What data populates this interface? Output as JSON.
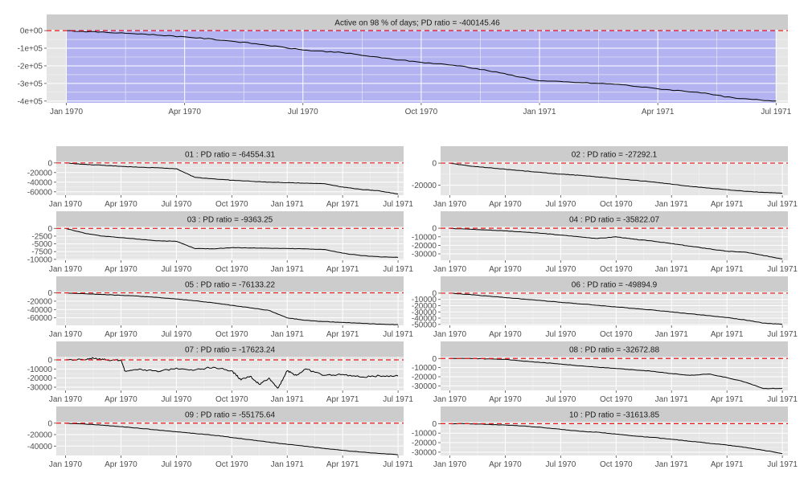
{
  "theme": {
    "panel_bg": "#e5e5e5",
    "strip_bg": "#cccccc",
    "grid_major": "#ffffff",
    "grid_minor": "#f2f2f2",
    "line": "#000000",
    "zero_line": "#e41a1c",
    "active_fill": "#aaaaf5",
    "axis_text": "#4d4d4d"
  },
  "x_axis": {
    "range": [
      -0.5,
      18.3
    ],
    "ticks": [
      {
        "value": 0,
        "label": "Jan 1970"
      },
      {
        "value": 3,
        "label": "Apr 1970"
      },
      {
        "value": 6,
        "label": "Jul 1970"
      },
      {
        "value": 9,
        "label": "Oct 1970"
      },
      {
        "value": 12,
        "label": "Jan 1971"
      },
      {
        "value": 15,
        "label": "Apr 1971"
      },
      {
        "value": 18,
        "label": "Jul 1971"
      }
    ]
  },
  "chart_data": [
    {
      "id": "aggregate",
      "type": "line",
      "title": "Active on 98 % of days; PD ratio =  -400145.46",
      "x_unit": "months since Jan 1970",
      "active_period": [
        0,
        18
      ],
      "ylim": [
        -410000,
        5000
      ],
      "y_ticks": [
        {
          "value": 0,
          "label": "0e+00"
        },
        {
          "value": -100000,
          "label": "-1e+05"
        },
        {
          "value": -200000,
          "label": "-2e+05"
        },
        {
          "value": -300000,
          "label": "-3e+05"
        },
        {
          "value": -400000,
          "label": "-4e+05"
        }
      ],
      "x": [
        0,
        1,
        2,
        3,
        4,
        5,
        6,
        7,
        8,
        9,
        10,
        11,
        12,
        13,
        14,
        15,
        16,
        17,
        18
      ],
      "values": [
        0,
        -10000,
        -20000,
        -35000,
        -55000,
        -80000,
        -110000,
        -125000,
        -155000,
        -180000,
        -200000,
        -240000,
        -285000,
        -295000,
        -305000,
        -330000,
        -350000,
        -385000,
        -400000
      ]
    },
    {
      "id": "01",
      "type": "line",
      "title": "01 : PD ratio =  -64554.31",
      "ylim": [
        -67000,
        3000
      ],
      "y_ticks": [
        {
          "value": 0,
          "label": "0"
        },
        {
          "value": -20000,
          "label": "-20000"
        },
        {
          "value": -40000,
          "label": "-40000"
        },
        {
          "value": -60000,
          "label": "-60000"
        }
      ],
      "x": [
        0,
        1,
        2,
        3,
        4,
        5,
        6,
        7,
        8,
        9,
        10,
        11,
        12,
        13,
        14,
        15,
        16,
        17,
        18
      ],
      "values": [
        0,
        -3000,
        -5000,
        -7000,
        -9000,
        -10000,
        -12000,
        -30000,
        -33000,
        -36000,
        -38000,
        -40000,
        -41000,
        -42000,
        -43000,
        -50000,
        -55000,
        -58000,
        -64554
      ]
    },
    {
      "id": "02",
      "type": "line",
      "title": "02 : PD ratio =  -27292.1",
      "ylim": [
        -29000,
        1500
      ],
      "y_ticks": [
        {
          "value": 0,
          "label": "0"
        },
        {
          "value": -20000,
          "label": "-20000"
        }
      ],
      "x": [
        0,
        1,
        2,
        3,
        4,
        5,
        6,
        7,
        8,
        9,
        10,
        11,
        12,
        13,
        14,
        15,
        16,
        17,
        18
      ],
      "values": [
        0,
        -2500,
        -4000,
        -5500,
        -7000,
        -8500,
        -10000,
        -11000,
        -12500,
        -14000,
        -15500,
        -17000,
        -19000,
        -21000,
        -22500,
        -24000,
        -25500,
        -26500,
        -27292
      ]
    },
    {
      "id": "03",
      "type": "line",
      "title": "03 : PD ratio =  -9363.25",
      "ylim": [
        -10300,
        600
      ],
      "y_ticks": [
        {
          "value": 0,
          "label": "0"
        },
        {
          "value": -2500,
          "label": "-2500"
        },
        {
          "value": -5000,
          "label": "-5000"
        },
        {
          "value": -7500,
          "label": "-7500"
        },
        {
          "value": -10000,
          "label": "-10000"
        }
      ],
      "x": [
        0,
        1,
        2,
        3,
        4,
        5,
        6,
        7,
        8,
        9,
        10,
        11,
        12,
        13,
        14,
        15,
        16,
        17,
        18
      ],
      "values": [
        0,
        -1500,
        -2500,
        -3000,
        -3500,
        -4000,
        -4200,
        -6500,
        -6600,
        -6200,
        -6300,
        -6400,
        -6500,
        -6600,
        -6800,
        -8000,
        -8800,
        -9200,
        -9363
      ]
    },
    {
      "id": "04",
      "type": "line",
      "title": "04 : PD ratio =  -35822.07",
      "ylim": [
        -37500,
        2000
      ],
      "y_ticks": [
        {
          "value": 0,
          "label": "0"
        },
        {
          "value": -10000,
          "label": "-10000"
        },
        {
          "value": -20000,
          "label": "-20000"
        },
        {
          "value": -30000,
          "label": "-30000"
        }
      ],
      "x": [
        0,
        1,
        2,
        3,
        4,
        5,
        6,
        7,
        8,
        9,
        10,
        11,
        12,
        13,
        14,
        15,
        16,
        17,
        18
      ],
      "values": [
        0,
        -1000,
        -2000,
        -3000,
        -4500,
        -6000,
        -8000,
        -10000,
        -12000,
        -10000,
        -13000,
        -15000,
        -18000,
        -21000,
        -24000,
        -27000,
        -28000,
        -32000,
        -35822
      ]
    },
    {
      "id": "05",
      "type": "line",
      "title": "05 : PD ratio =  -76133.22",
      "ylim": [
        -78000,
        3000
      ],
      "y_ticks": [
        {
          "value": 0,
          "label": "0"
        },
        {
          "value": -20000,
          "label": "-20000"
        },
        {
          "value": -40000,
          "label": "-40000"
        },
        {
          "value": -60000,
          "label": "-60000"
        }
      ],
      "x": [
        0,
        1,
        2,
        3,
        4,
        5,
        6,
        7,
        8,
        9,
        10,
        11,
        12,
        13,
        14,
        15,
        16,
        17,
        18
      ],
      "values": [
        0,
        -2000,
        -4000,
        -6000,
        -8000,
        -11000,
        -15000,
        -19000,
        -24000,
        -30000,
        -36000,
        -42000,
        -60000,
        -66000,
        -69000,
        -71000,
        -73000,
        -75000,
        -76133
      ]
    },
    {
      "id": "06",
      "type": "line",
      "title": "06 : PD ratio =  -49894.9",
      "ylim": [
        -51500,
        2500
      ],
      "y_ticks": [
        {
          "value": 0,
          "label": "0"
        },
        {
          "value": -10000,
          "label": "-10000"
        },
        {
          "value": -20000,
          "label": "-20000"
        },
        {
          "value": -30000,
          "label": "-30000"
        },
        {
          "value": -40000,
          "label": "-40000"
        },
        {
          "value": -50000,
          "label": "-50000"
        }
      ],
      "x": [
        0,
        1,
        2,
        3,
        4,
        5,
        6,
        7,
        8,
        9,
        10,
        11,
        12,
        13,
        14,
        15,
        16,
        17,
        18
      ],
      "values": [
        0,
        -2000,
        -4500,
        -7000,
        -9500,
        -12000,
        -14500,
        -17000,
        -19500,
        -22000,
        -24500,
        -27000,
        -30000,
        -33000,
        -36000,
        -39000,
        -43000,
        -48000,
        -49895
      ]
    },
    {
      "id": "07",
      "type": "line",
      "title": "07 : PD ratio =  -17623.24",
      "ylim": [
        -33500,
        3500
      ],
      "y_ticks": [
        {
          "value": 0,
          "label": "0"
        },
        {
          "value": -10000,
          "label": "-10000"
        },
        {
          "value": -20000,
          "label": "-20000"
        },
        {
          "value": -30000,
          "label": "-30000"
        }
      ],
      "x": [
        0,
        1,
        1.5,
        2,
        2.5,
        3,
        3.2,
        4,
        5,
        6,
        7,
        8,
        9,
        9.5,
        10,
        10.5,
        11,
        11.5,
        12,
        12.5,
        13,
        14,
        15,
        16,
        17,
        18
      ],
      "values": [
        0,
        0,
        2000,
        1000,
        -500,
        0,
        -12000,
        -10000,
        -13000,
        -9000,
        -11000,
        -8000,
        -12000,
        -22000,
        -18000,
        -27000,
        -20000,
        -31000,
        -12000,
        -17000,
        -10000,
        -17000,
        -16000,
        -19000,
        -17500,
        -17623
      ]
    },
    {
      "id": "08",
      "type": "line",
      "title": "08 : PD ratio =  -32672.88",
      "ylim": [
        -35000,
        2000
      ],
      "y_ticks": [
        {
          "value": 0,
          "label": "0"
        },
        {
          "value": -10000,
          "label": "-10000"
        },
        {
          "value": -20000,
          "label": "-20000"
        },
        {
          "value": -30000,
          "label": "-30000"
        }
      ],
      "x": [
        0,
        1,
        2,
        3,
        4,
        5,
        6,
        7,
        8,
        9,
        10,
        11,
        12,
        13,
        14,
        15,
        16,
        17,
        18
      ],
      "values": [
        0,
        0,
        -500,
        -1000,
        -3000,
        -4500,
        -6000,
        -8000,
        -9500,
        -11000,
        -12500,
        -14000,
        -16500,
        -18500,
        -17000,
        -21000,
        -26000,
        -33000,
        -32673
      ]
    },
    {
      "id": "09",
      "type": "line",
      "title": "09 : PD ratio =  -55175.64",
      "ylim": [
        -56500,
        2500
      ],
      "y_ticks": [
        {
          "value": 0,
          "label": "0"
        },
        {
          "value": -20000,
          "label": "-20000"
        },
        {
          "value": -40000,
          "label": "-40000"
        }
      ],
      "x": [
        0,
        1,
        2,
        3,
        4,
        5,
        6,
        7,
        8,
        9,
        10,
        11,
        12,
        13,
        14,
        15,
        16,
        17,
        18
      ],
      "values": [
        0,
        -1500,
        -3500,
        -6000,
        -9000,
        -12000,
        -15000,
        -18000,
        -21000,
        -25000,
        -29000,
        -33000,
        -37000,
        -40500,
        -44000,
        -47500,
        -50500,
        -53000,
        -55176
      ]
    },
    {
      "id": "10",
      "type": "line",
      "title": "10 : PD ratio =  -31613.85",
      "ylim": [
        -33500,
        2000
      ],
      "y_ticks": [
        {
          "value": 0,
          "label": "0"
        },
        {
          "value": -10000,
          "label": "-10000"
        },
        {
          "value": -20000,
          "label": "-20000"
        },
        {
          "value": -30000,
          "label": "-30000"
        }
      ],
      "x": [
        0,
        1,
        2,
        3,
        4,
        5,
        6,
        7,
        8,
        9,
        10,
        11,
        12,
        13,
        14,
        15,
        16,
        17,
        18
      ],
      "values": [
        0,
        0,
        -800,
        -1500,
        -2500,
        -4000,
        -6000,
        -8000,
        -9000,
        -11000,
        -13000,
        -14500,
        -16500,
        -18500,
        -20500,
        -22500,
        -25000,
        -28000,
        -31614
      ]
    }
  ]
}
